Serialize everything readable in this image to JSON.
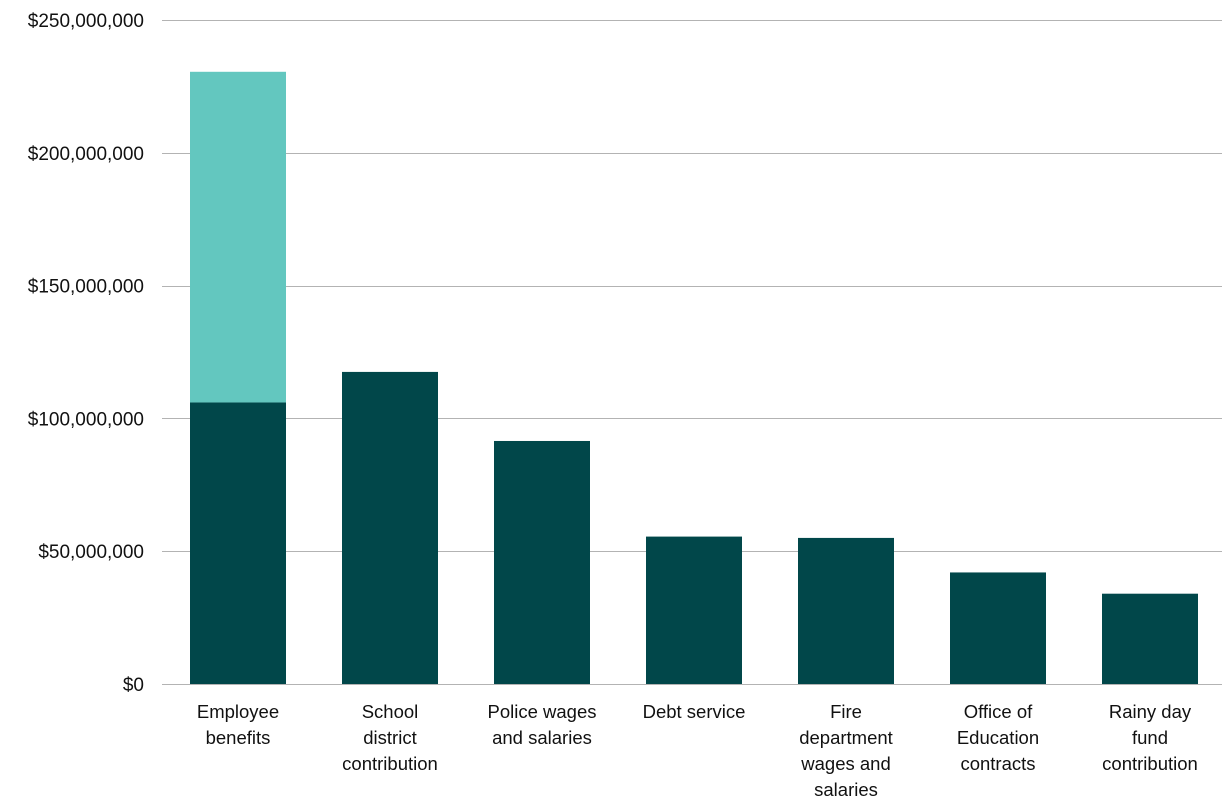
{
  "chart_data": {
    "type": "bar",
    "stacked": true,
    "title": "",
    "xlabel": "",
    "ylabel": "",
    "ylim": [
      0,
      250000000
    ],
    "yticks": [
      0,
      50000000,
      100000000,
      150000000,
      200000000,
      250000000
    ],
    "ytick_labels": [
      "$0",
      "$50,000,000",
      "$100,000,000",
      "$150,000,000",
      "$200,000,000",
      "$250,000,000"
    ],
    "grid": true,
    "legend": "none",
    "categories": [
      [
        "Employee",
        "benefits"
      ],
      [
        "School",
        "district",
        "contribution"
      ],
      [
        "Police wages",
        "and salaries"
      ],
      [
        "Debt service"
      ],
      [
        "Fire",
        "department",
        "wages and",
        "salaries"
      ],
      [
        "Office of",
        "Education",
        "contracts"
      ],
      [
        "Rainy day",
        "fund",
        "contribution"
      ]
    ],
    "series": [
      {
        "color": "#01474a",
        "values": [
          106000000,
          117500000,
          91500000,
          55500000,
          55000000,
          42000000,
          34000000
        ]
      },
      {
        "color": "#63c7bf",
        "values": [
          124500000,
          0,
          0,
          0,
          0,
          0,
          0
        ]
      }
    ]
  }
}
